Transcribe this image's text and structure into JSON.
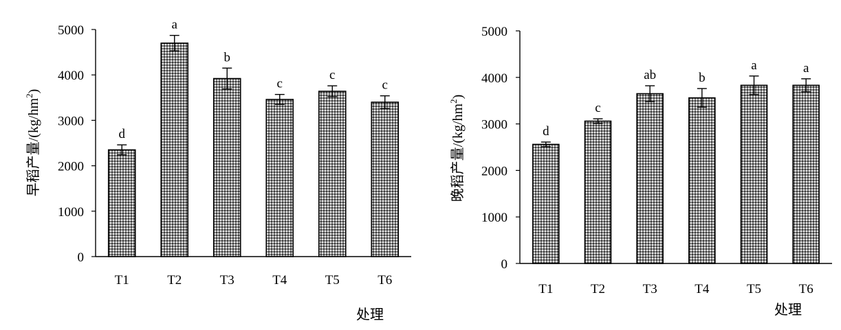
{
  "chart_data": [
    {
      "type": "bar",
      "title": "",
      "xlabel": "处理",
      "ylabel": "早稻产量/(kg/hm",
      "ylabel_sup": "2",
      "ylabel_close": ")",
      "categories": [
        "T1",
        "T2",
        "T3",
        "T4",
        "T5",
        "T6"
      ],
      "values": [
        2350,
        4700,
        3920,
        3460,
        3640,
        3400
      ],
      "errors": [
        110,
        170,
        230,
        110,
        120,
        140
      ],
      "significance": [
        "d",
        "a",
        "b",
        "c",
        "c",
        "c"
      ],
      "ylim": [
        0,
        5000
      ],
      "yticks": [
        0,
        1000,
        2000,
        3000,
        4000,
        5000
      ],
      "bar_pattern": "dense dot hatch",
      "grid": false
    },
    {
      "type": "bar",
      "title": "",
      "xlabel": "处理",
      "ylabel": "晚稻产量/(kg/hm",
      "ylabel_sup": "2",
      "ylabel_close": ")",
      "categories": [
        "T1",
        "T2",
        "T3",
        "T4",
        "T5",
        "T6"
      ],
      "values": [
        2560,
        3060,
        3650,
        3560,
        3830,
        3830
      ],
      "errors": [
        50,
        50,
        170,
        200,
        200,
        140
      ],
      "significance": [
        "d",
        "c",
        "ab",
        "b",
        "a",
        "a"
      ],
      "ylim": [
        0,
        5000
      ],
      "yticks": [
        0,
        1000,
        2000,
        3000,
        4000,
        5000
      ],
      "bar_pattern": "dense dot hatch",
      "grid": false
    }
  ]
}
